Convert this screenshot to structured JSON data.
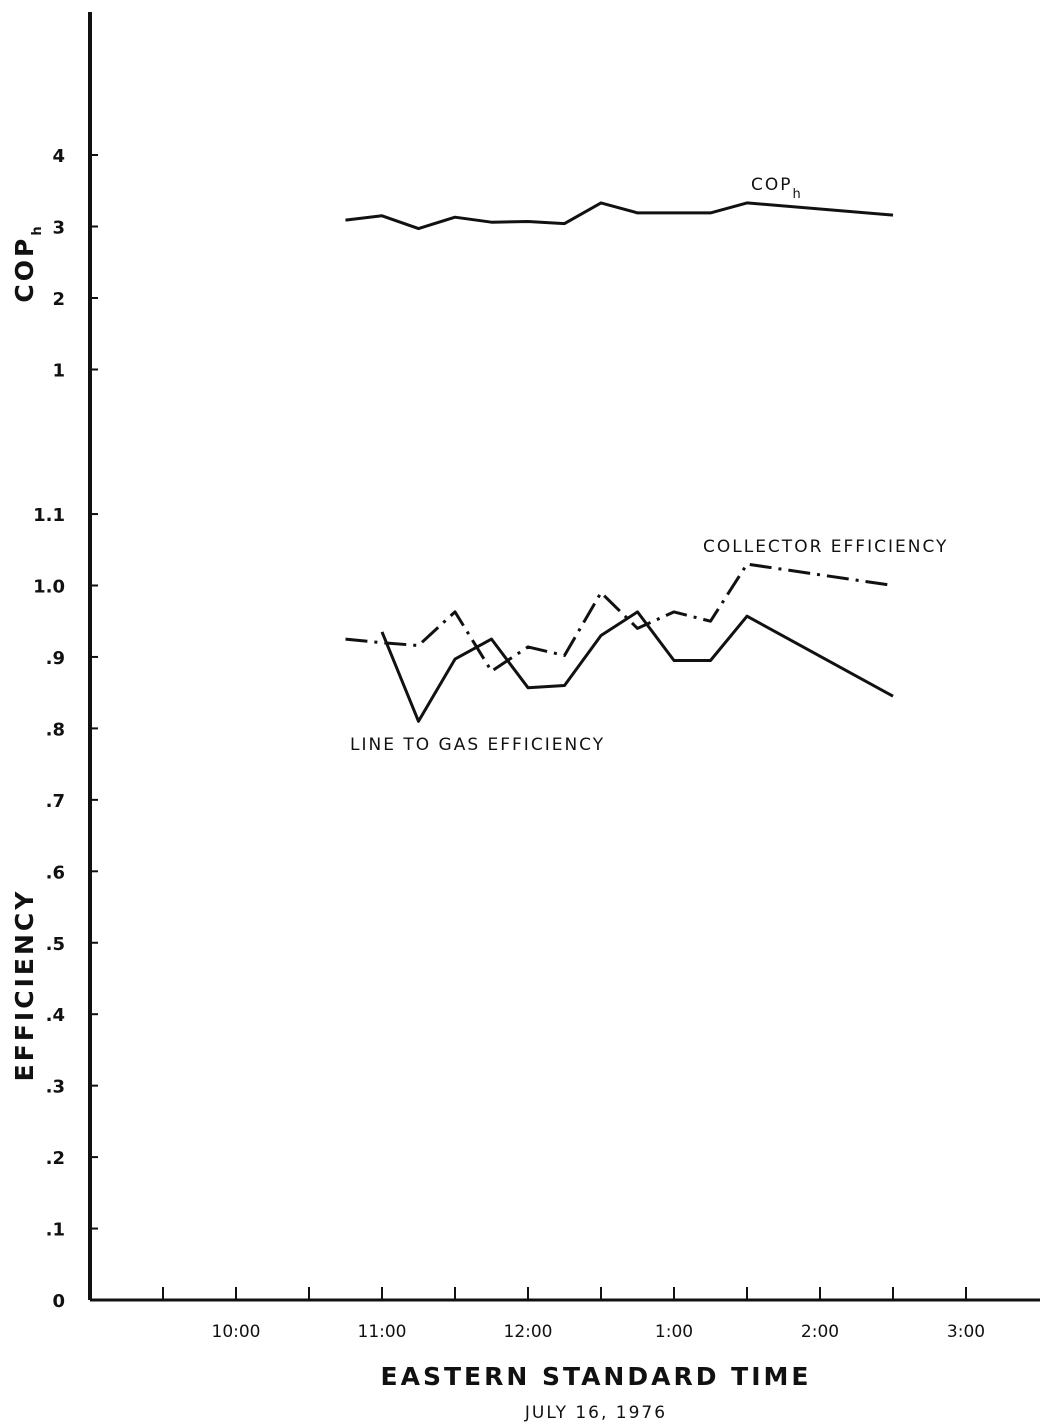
{
  "chart_data": [
    {
      "type": "line",
      "panel": "top",
      "ylabel": "COP",
      "ylabel_subscript": "h",
      "ylim": [
        0,
        4
      ],
      "y_ticks": [
        "1",
        "2",
        "3",
        "4"
      ],
      "y_tick_values": [
        1,
        2,
        3,
        4
      ],
      "xlim": [
        9.0,
        15.5
      ],
      "series": [
        {
          "name": "COP",
          "name_subscript": "h",
          "style": "solid",
          "x": [
            10.75,
            11.0,
            11.25,
            11.5,
            11.75,
            12.0,
            12.25,
            12.5,
            12.75,
            13.0,
            13.25,
            13.5,
            14.5
          ],
          "y": [
            3.09,
            3.15,
            2.97,
            3.13,
            3.06,
            3.07,
            3.04,
            3.33,
            3.19,
            3.19,
            3.19,
            3.33,
            3.16
          ]
        }
      ]
    },
    {
      "type": "line",
      "panel": "bottom",
      "ylabel": "EFFICIENCY",
      "ylim": [
        0,
        1.1
      ],
      "y_ticks": [
        "0",
        ".1",
        ".2",
        ".3",
        ".4",
        ".5",
        ".6",
        ".7",
        ".8",
        ".9",
        "1.0",
        "1.1"
      ],
      "y_tick_values": [
        0,
        0.1,
        0.2,
        0.3,
        0.4,
        0.5,
        0.6,
        0.7,
        0.8,
        0.9,
        1.0,
        1.1
      ],
      "xlim": [
        9.0,
        15.5
      ],
      "x_ticks": [
        "10:00",
        "11:00",
        "12:00",
        "1:00",
        "2:00",
        "3:00"
      ],
      "x_tick_values": [
        10,
        11,
        12,
        13,
        14,
        15
      ],
      "xlabel": "EASTERN STANDARD TIME",
      "subtitle": "JULY 16, 1976",
      "series": [
        {
          "name": "COLLECTOR EFFICIENCY",
          "style": "dash-dot",
          "x": [
            10.75,
            11.0,
            11.25,
            11.5,
            11.75,
            12.0,
            12.25,
            12.5,
            12.75,
            13.0,
            13.25,
            13.5,
            14.5
          ],
          "y": [
            0.925,
            0.92,
            0.916,
            0.963,
            0.88,
            0.914,
            0.902,
            0.99,
            0.94,
            0.963,
            0.95,
            1.03,
            1.0
          ]
        },
        {
          "name": "LINE TO GAS EFFICIENCY",
          "style": "solid",
          "x": [
            11.0,
            11.25,
            11.5,
            11.75,
            12.0,
            12.25,
            12.5,
            12.75,
            13.0,
            13.25,
            13.5,
            14.5
          ],
          "y": [
            0.935,
            0.81,
            0.897,
            0.925,
            0.857,
            0.86,
            0.93,
            0.963,
            0.895,
            0.895,
            0.957,
            0.845
          ]
        }
      ]
    }
  ]
}
